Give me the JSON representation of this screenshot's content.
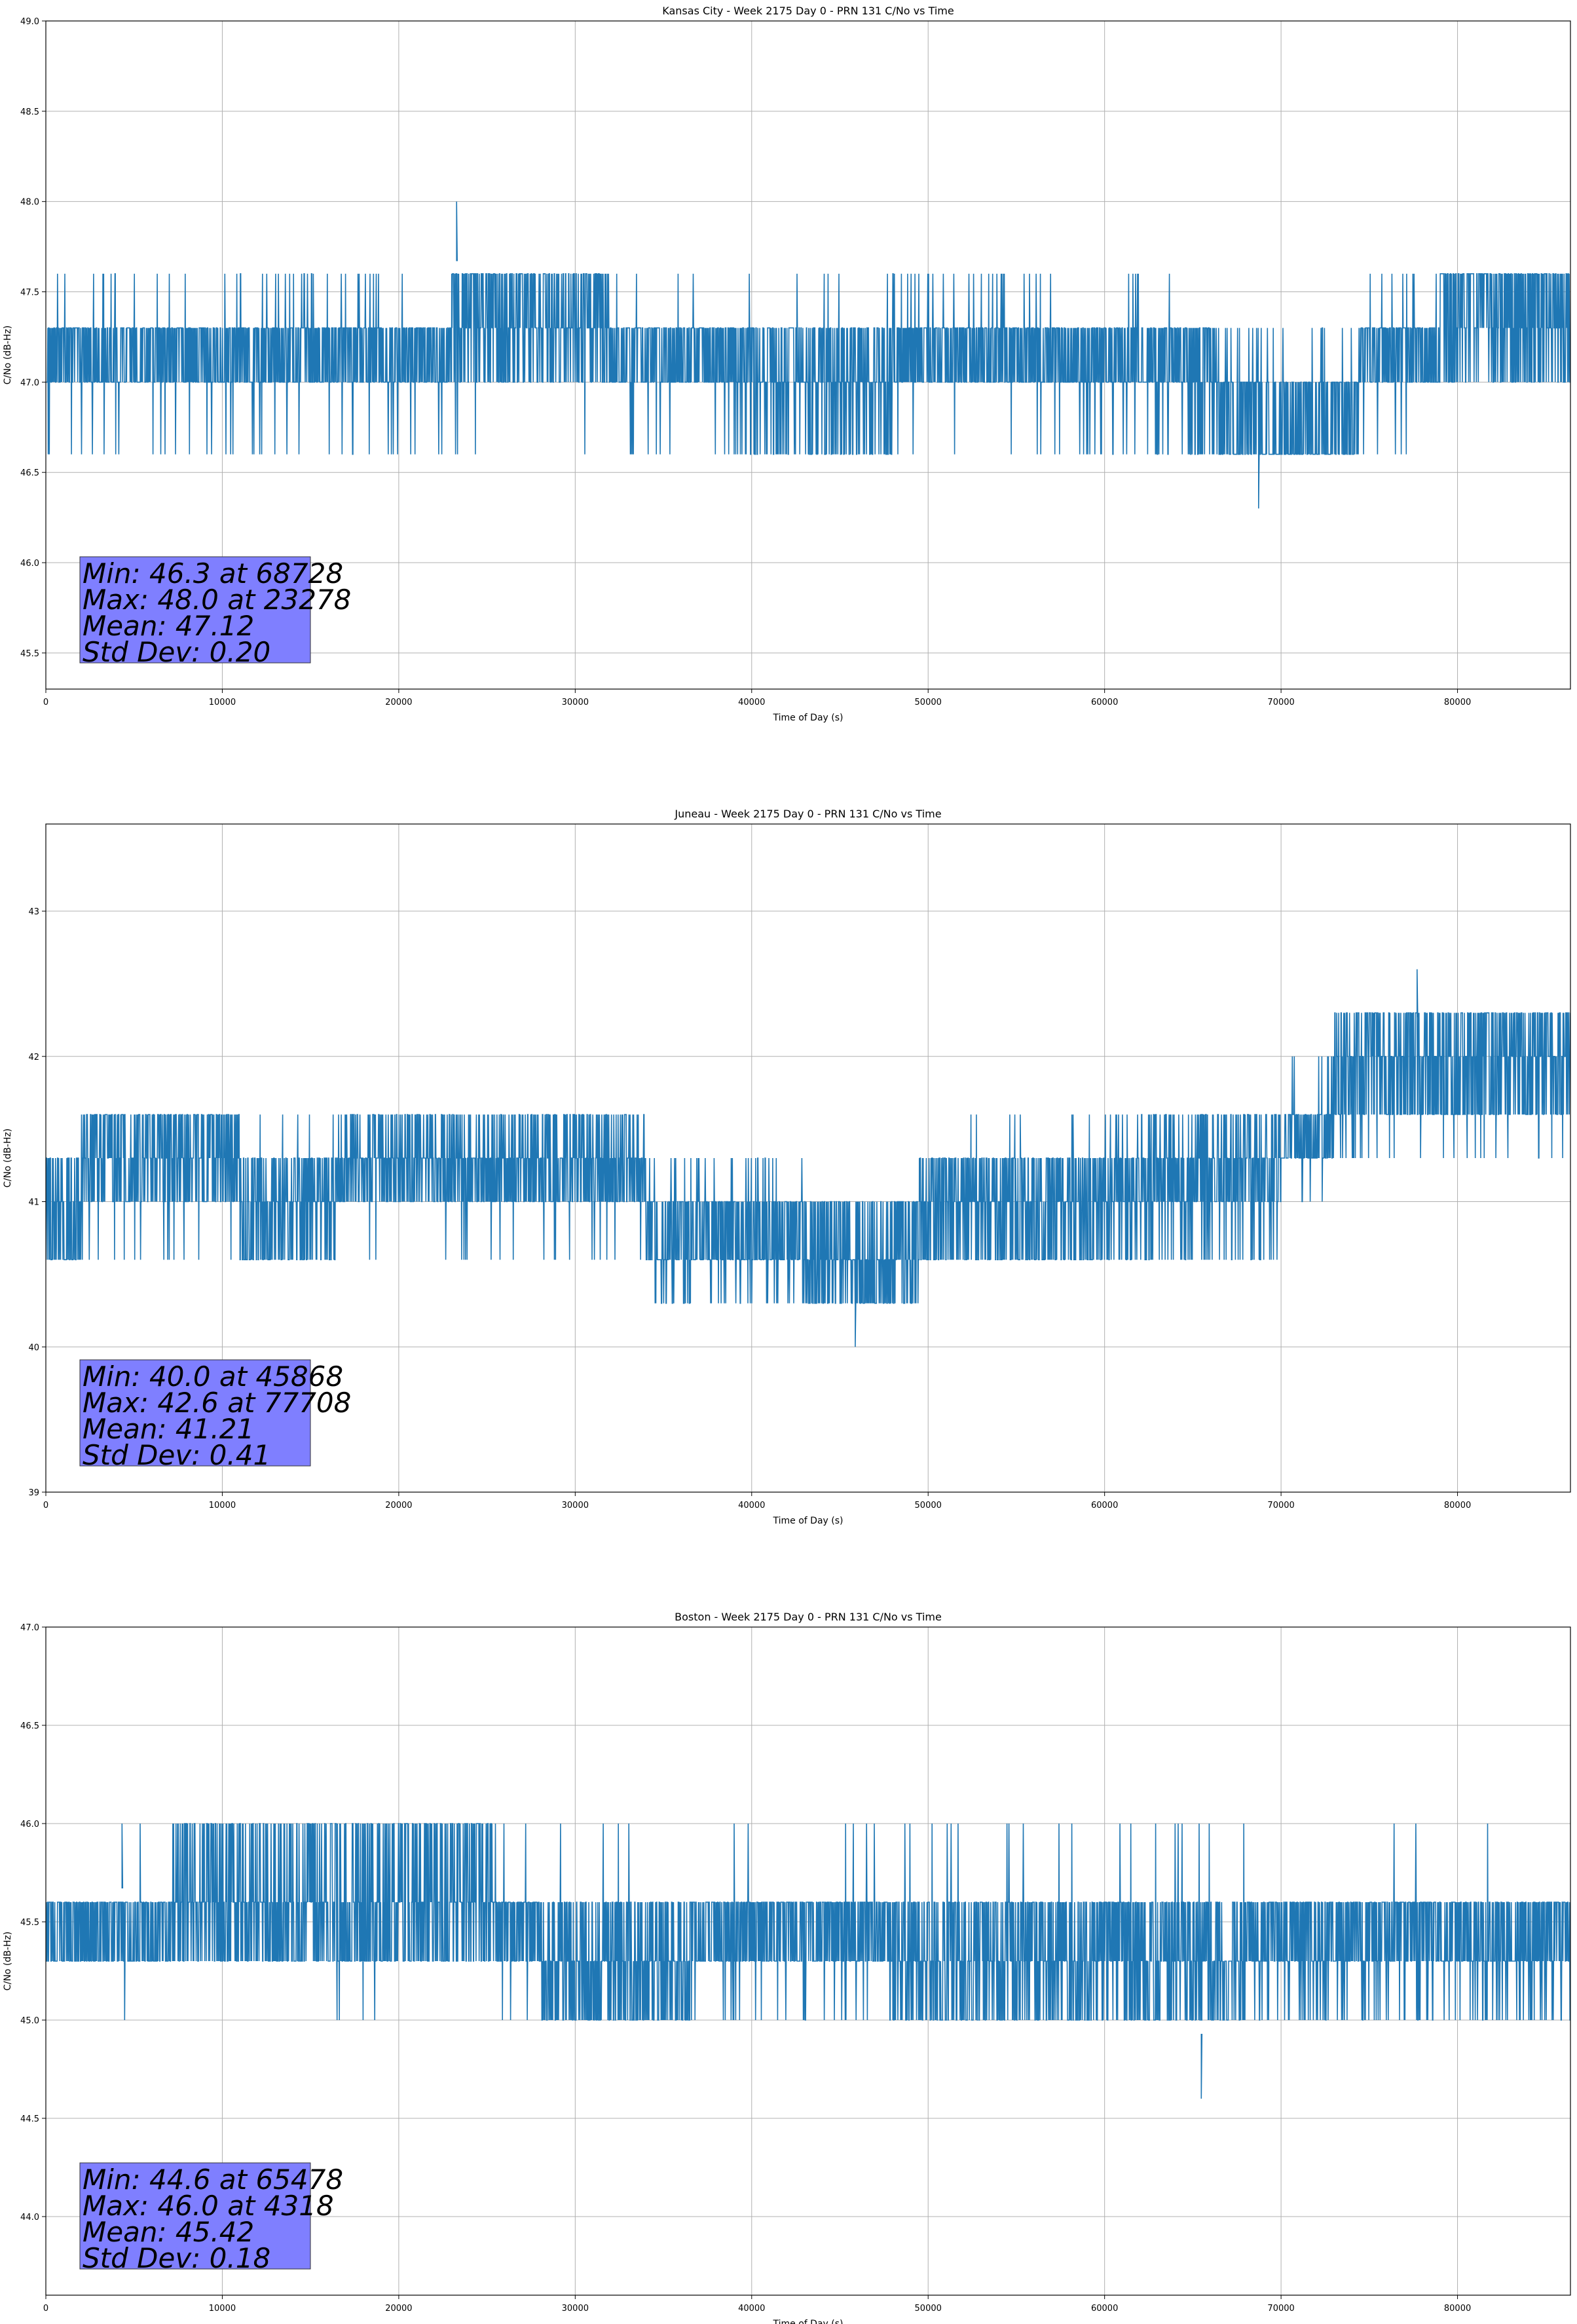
{
  "chart_data": [
    {
      "type": "line",
      "title": "Kansas City - Week 2175 Day 0 - PRN 131 C/No vs Time",
      "xlabel": "Time of Day (s)",
      "ylabel": "C/No (dB-Hz)",
      "xlim": [
        0,
        86400
      ],
      "ylim": [
        45.3,
        49.0
      ],
      "xticks": [
        0,
        10000,
        20000,
        30000,
        40000,
        50000,
        60000,
        70000,
        80000
      ],
      "yticks": [
        "45.5",
        "46.0",
        "46.5",
        "47.0",
        "47.5",
        "48.0",
        "48.5",
        "49.0"
      ],
      "grid": true,
      "color": "#1f77b4",
      "quantization": 0.33,
      "min": {
        "value": 46.3,
        "time": 68728
      },
      "max": {
        "value": 48.0,
        "time": 23278
      },
      "mean": 47.12,
      "std": 0.2,
      "stats_lines": [
        "Min: 46.3 at 68728",
        "Max: 48.0 at 23278",
        "Mean: 47.12",
        "Std Dev: 0.20"
      ],
      "segments": [
        {
          "x": [
            0,
            23000
          ],
          "levels": [
            47.0,
            47.3
          ],
          "up": [
            47.6,
            0.04
          ],
          "down": [
            46.6,
            0.03
          ]
        },
        {
          "x": [
            23000,
            32000
          ],
          "levels": [
            47.0,
            47.3,
            47.6
          ],
          "up": [
            47.6,
            0.15
          ],
          "down": [
            46.6,
            0.01
          ]
        },
        {
          "x": [
            32000,
            38500
          ],
          "levels": [
            47.0,
            47.3
          ],
          "up": [
            47.6,
            0.01
          ],
          "down": [
            46.6,
            0.05
          ]
        },
        {
          "x": [
            38500,
            48000
          ],
          "levels": [
            47.0,
            47.3
          ],
          "up": [
            47.6,
            0.01
          ],
          "down": [
            46.6,
            0.25
          ]
        },
        {
          "x": [
            48000,
            56500
          ],
          "levels": [
            47.0,
            47.3
          ],
          "up": [
            47.6,
            0.07
          ],
          "down": [
            46.6,
            0.02
          ]
        },
        {
          "x": [
            56500,
            64500
          ],
          "levels": [
            47.0,
            47.3
          ],
          "up": [
            47.6,
            0.01
          ],
          "down": [
            46.6,
            0.06
          ]
        },
        {
          "x": [
            64500,
            66500
          ],
          "levels": [
            46.6,
            47.0,
            47.3
          ],
          "up": [
            47.6,
            0.0
          ],
          "down": [
            46.6,
            0.0
          ]
        },
        {
          "x": [
            66500,
            74500
          ],
          "levels": [
            46.6,
            47.0
          ],
          "up": [
            47.3,
            0.06
          ],
          "down": [
            46.6,
            0.0
          ]
        },
        {
          "x": [
            74500,
            79000
          ],
          "levels": [
            47.0,
            47.3
          ],
          "up": [
            47.6,
            0.04
          ],
          "down": [
            46.6,
            0.04
          ]
        },
        {
          "x": [
            79000,
            86400
          ],
          "levels": [
            47.0,
            47.3,
            47.6
          ],
          "up": [
            47.6,
            0.25
          ],
          "down": [
            46.6,
            0.0
          ]
        }
      ]
    },
    {
      "type": "line",
      "title": "Juneau - Week 2175 Day 0 - PRN 131 C/No vs Time",
      "xlabel": "Time of Day (s)",
      "ylabel": "C/No (dB-Hz)",
      "xlim": [
        0,
        86400
      ],
      "ylim": [
        39.0,
        43.6
      ],
      "xticks": [
        0,
        10000,
        20000,
        30000,
        40000,
        50000,
        60000,
        70000,
        80000
      ],
      "yticks": [
        "39",
        "40",
        "41",
        "42",
        "43"
      ],
      "grid": true,
      "color": "#1f77b4",
      "quantization": 0.33,
      "min": {
        "value": 40.0,
        "time": 45868
      },
      "max": {
        "value": 42.6,
        "time": 77708
      },
      "mean": 41.21,
      "std": 0.41,
      "stats_lines": [
        "Min: 40.0 at 45868",
        "Max: 42.6 at 77708",
        "Mean: 41.21",
        "Std Dev: 0.41"
      ],
      "segments": [
        {
          "x": [
            0,
            2000
          ],
          "levels": [
            40.6,
            41.0,
            41.3
          ],
          "up": [
            41.3,
            0.0
          ],
          "down": [
            40.6,
            0.1
          ]
        },
        {
          "x": [
            2000,
            11000
          ],
          "levels": [
            41.0,
            41.3,
            41.6
          ],
          "up": [
            41.6,
            0.1
          ],
          "down": [
            40.6,
            0.05
          ]
        },
        {
          "x": [
            11000,
            16500
          ],
          "levels": [
            41.0,
            41.3
          ],
          "up": [
            41.6,
            0.02
          ],
          "down": [
            40.6,
            0.35
          ]
        },
        {
          "x": [
            16500,
            34000
          ],
          "levels": [
            41.0,
            41.3
          ],
          "up": [
            41.6,
            0.25
          ],
          "down": [
            40.6,
            0.03
          ]
        },
        {
          "x": [
            34000,
            43000
          ],
          "levels": [
            40.6,
            41.0
          ],
          "up": [
            41.3,
            0.05
          ],
          "down": [
            40.3,
            0.1
          ]
        },
        {
          "x": [
            43000,
            49500
          ],
          "levels": [
            40.3,
            40.6,
            41.0
          ],
          "up": [
            41.0,
            0.0
          ],
          "down": [
            40.3,
            0.0
          ]
        },
        {
          "x": [
            49500,
            60000
          ],
          "levels": [
            40.6,
            41.0,
            41.3
          ],
          "up": [
            41.6,
            0.02
          ],
          "down": [
            40.6,
            0.0
          ]
        },
        {
          "x": [
            60000,
            70000
          ],
          "levels": [
            41.0,
            41.3
          ],
          "up": [
            41.6,
            0.2
          ],
          "down": [
            40.6,
            0.15
          ]
        },
        {
          "x": [
            70000,
            73000
          ],
          "levels": [
            41.3,
            41.6
          ],
          "up": [
            42.0,
            0.1
          ],
          "down": [
            41.0,
            0.05
          ]
        },
        {
          "x": [
            73000,
            86400
          ],
          "levels": [
            41.6,
            42.0
          ],
          "up": [
            42.3,
            0.35
          ],
          "down": [
            41.3,
            0.05
          ]
        }
      ]
    },
    {
      "type": "line",
      "title": "Boston - Week 2175 Day 0 - PRN 131 C/No vs Time",
      "xlabel": "Time of Day (s)",
      "ylabel": "C/No (dB-Hz)",
      "xlim": [
        0,
        86400
      ],
      "ylim": [
        43.6,
        47.0
      ],
      "xticks": [
        0,
        10000,
        20000,
        30000,
        40000,
        50000,
        60000,
        70000,
        80000
      ],
      "yticks": [
        "44.0",
        "44.5",
        "45.0",
        "45.5",
        "46.0",
        "46.5",
        "47.0"
      ],
      "grid": true,
      "color": "#1f77b4",
      "quantization": 0.33,
      "min": {
        "value": 44.6,
        "time": 65478
      },
      "max": {
        "value": 46.0,
        "time": 4318
      },
      "mean": 45.42,
      "std": 0.18,
      "stats_lines": [
        "Min: 44.6 at 65478",
        "Max: 46.0 at 4318",
        "Mean: 45.42",
        "Std Dev: 0.18"
      ],
      "segments": [
        {
          "x": [
            0,
            7000
          ],
          "levels": [
            45.3,
            45.6
          ],
          "up": [
            46.0,
            0.01
          ],
          "down": [
            45.0,
            0.005
          ]
        },
        {
          "x": [
            7000,
            25500
          ],
          "levels": [
            45.3,
            45.6
          ],
          "up": [
            46.0,
            0.3
          ],
          "down": [
            45.0,
            0.01
          ]
        },
        {
          "x": [
            25500,
            28000
          ],
          "levels": [
            45.3,
            45.6
          ],
          "up": [
            46.0,
            0.02
          ],
          "down": [
            45.0,
            0.02
          ]
        },
        {
          "x": [
            28000,
            36500
          ],
          "levels": [
            45.3,
            45.6
          ],
          "up": [
            46.0,
            0.005
          ],
          "down": [
            45.0,
            0.35
          ]
        },
        {
          "x": [
            36500,
            48000
          ],
          "levels": [
            45.3,
            45.6
          ],
          "up": [
            46.0,
            0.01
          ],
          "down": [
            45.0,
            0.06
          ]
        },
        {
          "x": [
            48000,
            68000
          ],
          "levels": [
            45.3,
            45.6
          ],
          "up": [
            46.0,
            0.02
          ],
          "down": [
            45.0,
            0.3
          ]
        },
        {
          "x": [
            68000,
            86400
          ],
          "levels": [
            45.3,
            45.6
          ],
          "up": [
            46.0,
            0.005
          ],
          "down": [
            45.0,
            0.1
          ]
        }
      ]
    }
  ]
}
